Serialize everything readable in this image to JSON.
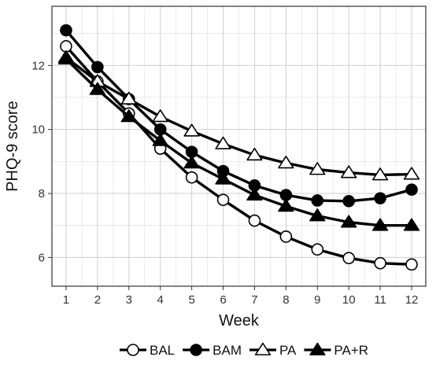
{
  "chart_data": {
    "type": "line",
    "title": "",
    "xlabel": "Week",
    "ylabel": "PHQ-9 score",
    "x": [
      1,
      2,
      3,
      4,
      5,
      6,
      7,
      8,
      9,
      10,
      11,
      12
    ],
    "xlim": [
      0.55,
      12.45
    ],
    "ylim": [
      5.1,
      13.85
    ],
    "yticks": [
      6,
      8,
      10,
      12
    ],
    "minor_yticks": [
      7,
      9,
      11,
      13
    ],
    "grid": true,
    "legend_position": "bottom",
    "series": [
      {
        "name": "BAL",
        "marker": "circle",
        "filled": false,
        "values": [
          12.6,
          11.5,
          10.5,
          9.4,
          8.5,
          7.8,
          7.15,
          6.65,
          6.25,
          5.98,
          5.82,
          5.78
        ]
      },
      {
        "name": "BAM",
        "marker": "circle",
        "filled": true,
        "values": [
          13.1,
          11.95,
          10.95,
          10.0,
          9.3,
          8.7,
          8.25,
          7.95,
          7.78,
          7.76,
          7.85,
          8.12
        ]
      },
      {
        "name": "PA",
        "marker": "triangle",
        "filled": false,
        "values": [
          12.25,
          11.5,
          10.95,
          10.4,
          9.95,
          9.55,
          9.2,
          8.95,
          8.75,
          8.65,
          8.58,
          8.6
        ]
      },
      {
        "name": "PA+R",
        "marker": "triangle",
        "filled": true,
        "values": [
          12.2,
          11.25,
          10.4,
          9.65,
          8.95,
          8.45,
          7.95,
          7.6,
          7.3,
          7.1,
          7.0,
          7.0
        ]
      }
    ]
  }
}
